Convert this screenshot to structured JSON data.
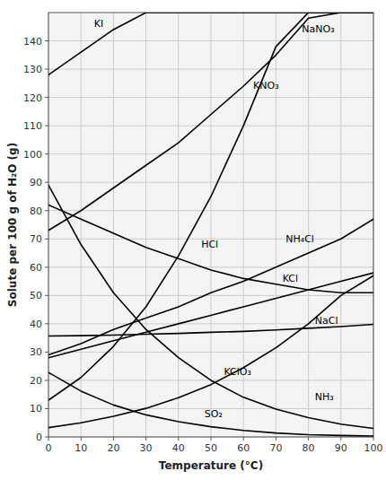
{
  "chart_data": {
    "type": "line",
    "title": "",
    "xlabel": "Temperature (°C)",
    "ylabel": "Solute per 100 g of H₂O (g)",
    "x": [
      0,
      10,
      20,
      30,
      40,
      50,
      60,
      70,
      80,
      90,
      100
    ],
    "xlim": [
      0,
      100
    ],
    "ylim": [
      0,
      150
    ],
    "xticks": [
      0,
      10,
      20,
      30,
      40,
      50,
      60,
      70,
      80,
      90,
      100
    ],
    "yticks": [
      0,
      10,
      20,
      30,
      40,
      50,
      60,
      70,
      80,
      90,
      100,
      110,
      120,
      130,
      140
    ],
    "grid": true,
    "color": "#000000",
    "series": [
      {
        "values": [
          13,
          21,
          32,
          46,
          64,
          85,
          110,
          138,
          150,
          150,
          150
        ]
      },
      {
        "values": [
          73,
          80,
          88,
          96,
          104,
          114,
          124,
          135,
          148,
          150,
          150
        ]
      },
      {
        "values": [
          128,
          136,
          144,
          150,
          150,
          150,
          150,
          150,
          150,
          150,
          150
        ]
      },
      {
        "values": [
          29,
          33,
          38,
          42,
          46,
          51,
          55,
          60,
          65,
          70,
          77
        ]
      },
      {
        "values": [
          82,
          77,
          72,
          67,
          63,
          59,
          56,
          54,
          52,
          51,
          51
        ]
      },
      {
        "values": [
          28,
          31,
          34,
          37,
          40,
          43,
          46,
          49,
          52,
          55,
          58
        ]
      },
      {
        "values": [
          35.7,
          35.8,
          36.0,
          36.3,
          36.6,
          37.0,
          37.3,
          37.8,
          38.4,
          39.0,
          39.8
        ]
      },
      {
        "values": [
          3.3,
          5.0,
          7.3,
          10.1,
          13.9,
          18.5,
          24.5,
          31.5,
          40.0,
          50.0,
          57.0
        ]
      },
      {
        "values": [
          22.8,
          16.2,
          11.3,
          7.8,
          5.4,
          3.6,
          2.3,
          1.4,
          0.8,
          0.5,
          0.3
        ]
      },
      {
        "values": [
          89,
          68,
          51,
          38,
          28,
          20,
          14,
          9.8,
          6.8,
          4.5,
          3.0
        ]
      }
    ],
    "annotations": [
      {
        "text": "KNO₃",
        "x": 63,
        "y": 124
      },
      {
        "text": "NaNO₃",
        "x": 78,
        "y": 144
      },
      {
        "text": "KI",
        "x": 14,
        "y": 146
      },
      {
        "text": "NH₄Cl",
        "x": 73,
        "y": 70
      },
      {
        "text": "HCl",
        "x": 47,
        "y": 68
      },
      {
        "text": "KCl",
        "x": 72,
        "y": 56
      },
      {
        "text": "NaCl",
        "x": 82,
        "y": 41
      },
      {
        "text": "KClO₃",
        "x": 54,
        "y": 23
      },
      {
        "text": "SO₂",
        "x": 48,
        "y": 8
      },
      {
        "text": "NH₃",
        "x": 82,
        "y": 14
      }
    ]
  }
}
